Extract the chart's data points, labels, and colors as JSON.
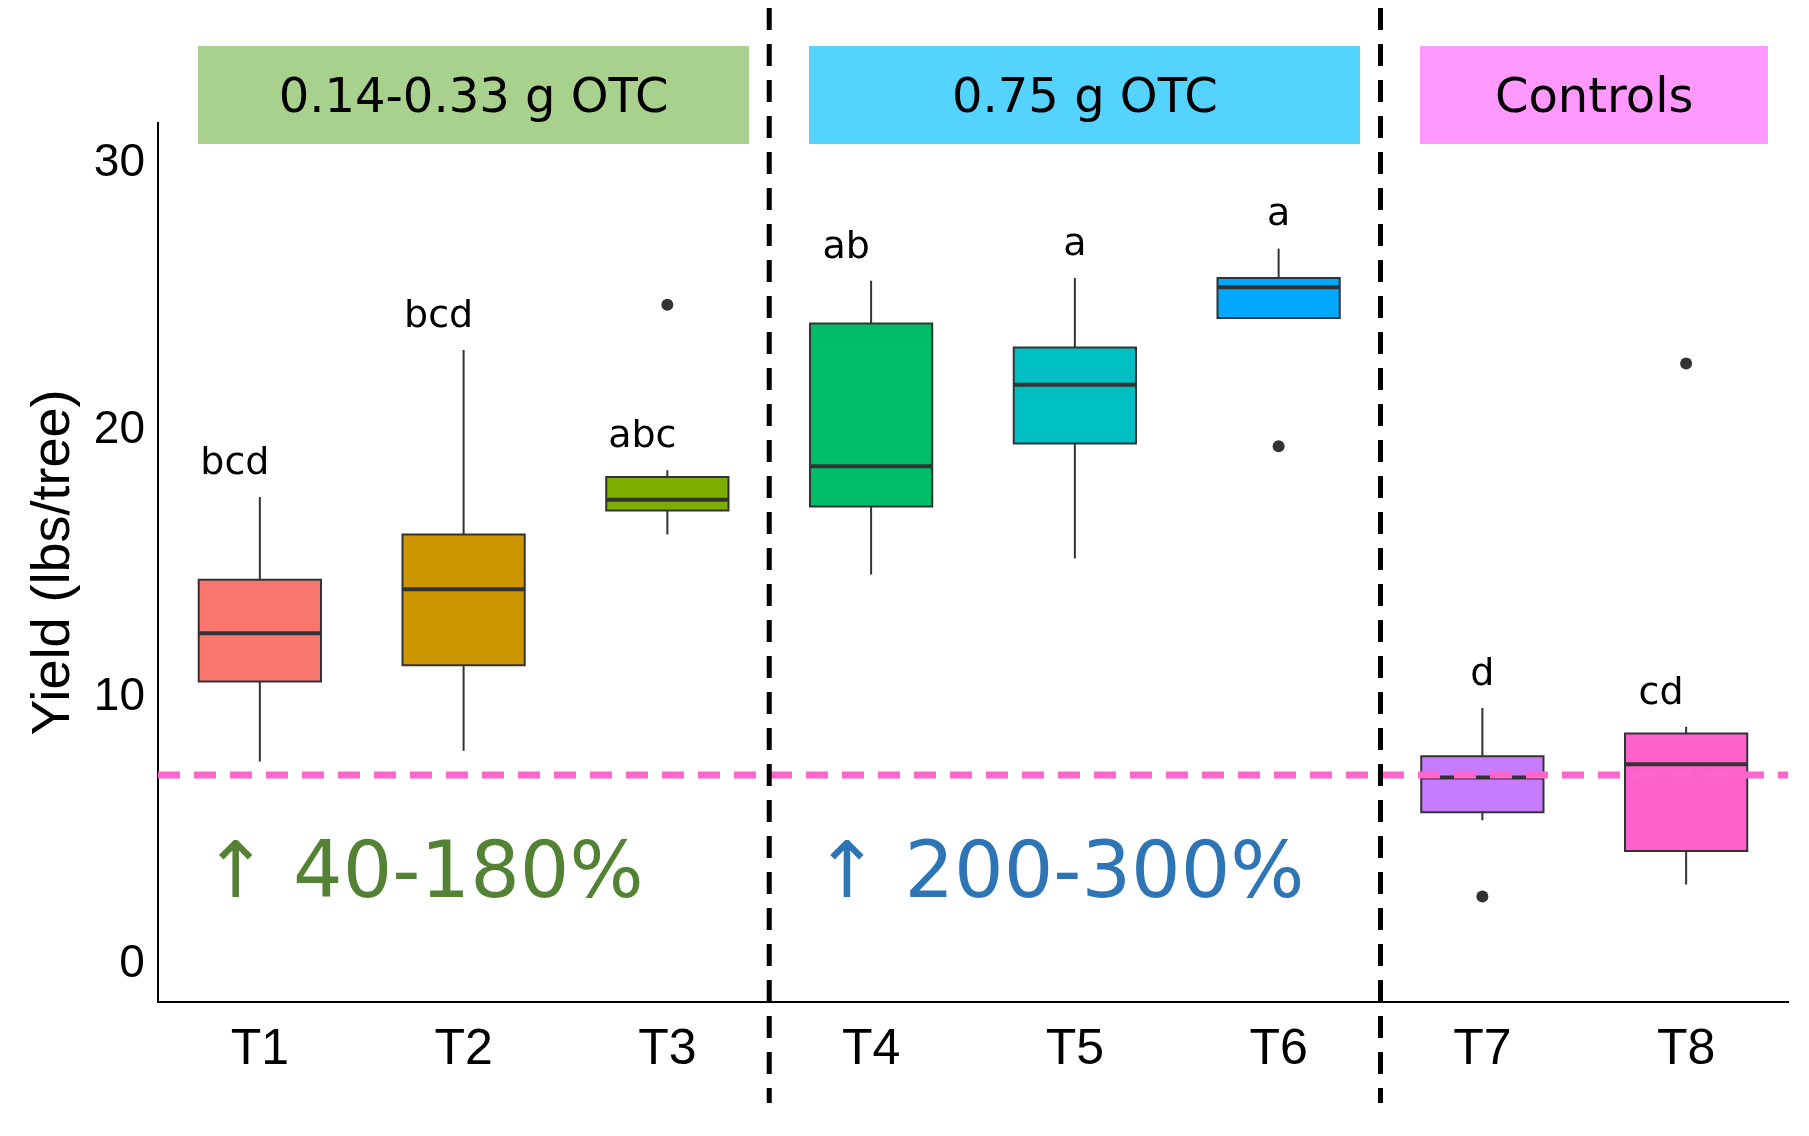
{
  "chart_data": {
    "type": "box",
    "ylabel": "Yield (lbs/tree)",
    "categories": [
      "T1",
      "T2",
      "T3",
      "T4",
      "T5",
      "T6",
      "T7",
      "T8"
    ],
    "colors": [
      "#f8766d",
      "#cd9600",
      "#7cae00",
      "#00be67",
      "#00bfc4",
      "#00a9ff",
      "#c77cff",
      "#ff61cc"
    ],
    "boxes": [
      {
        "low": 7.6,
        "q1": 10.6,
        "median": 12.4,
        "q3": 14.4,
        "high": 17.5
      },
      {
        "low": 8.0,
        "q1": 11.2,
        "median": 14.05,
        "q3": 16.1,
        "high": 23.0
      },
      {
        "low": 16.1,
        "q1": 17.0,
        "median": 17.4,
        "q3": 18.25,
        "high": 18.5,
        "outliers": [
          24.7
        ]
      },
      {
        "low": 14.6,
        "q1": 17.15,
        "median": 18.65,
        "q3": 24.0,
        "high": 25.6
      },
      {
        "low": 15.2,
        "q1": 19.5,
        "median": 21.7,
        "q3": 23.1,
        "high": 25.7
      },
      {
        "low": 24.2,
        "q1": 24.2,
        "median": 25.35,
        "q3": 25.7,
        "high": 26.8,
        "outliers": [
          19.4
        ]
      },
      {
        "low": 5.4,
        "q1": 5.7,
        "median": 7.0,
        "q3": 7.8,
        "high": 9.6,
        "outliers": [
          2.55
        ]
      },
      {
        "low": 3.0,
        "q1": 4.25,
        "median": 7.5,
        "q3": 8.65,
        "high": 8.9,
        "outliers": [
          22.5
        ]
      }
    ],
    "ylim": [
      -1.4,
      31.5
    ],
    "yticks": [
      0,
      10,
      20,
      30
    ],
    "grid": false,
    "legend": false,
    "ref_lines": [
      {
        "axis": "y",
        "value": 7.1,
        "color": "#ff66cc",
        "line_style": "dashed"
      }
    ],
    "annotations": [
      "0.14-0.33 g OTC",
      "0.75 g OTC",
      "Controls",
      "↑ 40-180%",
      "↑ 200-300%",
      {
        "text": "bcd",
        "x": "T1",
        "y": 17.5
      },
      {
        "text": "bcd",
        "x": "T2",
        "y": 23.0
      },
      {
        "text": "abc",
        "x": "T3",
        "y": 18.5
      },
      {
        "text": "ab",
        "x": "T4",
        "y": 25.6
      },
      {
        "text": "a",
        "x": "T5",
        "y": 25.7
      },
      {
        "text": "a",
        "x": "T6",
        "y": 26.8
      },
      {
        "text": "d",
        "x": "T7",
        "y": 9.6
      },
      {
        "text": "cd",
        "x": "T8",
        "y": 8.9
      }
    ]
  }
}
